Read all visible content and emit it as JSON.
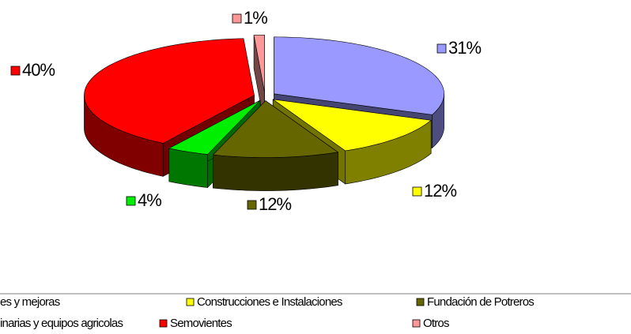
{
  "chart_data": {
    "type": "pie",
    "categories": [
      "es y mejoras",
      "Construcciones e Instalaciones",
      "Fundación de Potreros",
      "inarias y equipos agricolas",
      "Semovientes",
      "Otros"
    ],
    "values": [
      31,
      12,
      12,
      4,
      40,
      1
    ],
    "value_labels": [
      "31%",
      "12%",
      "12%",
      "4%",
      "40%",
      "1%"
    ],
    "colors": [
      "#9999ff",
      "#ffff00",
      "#666600",
      "#00ee00",
      "#ff0000",
      "#ff9999"
    ],
    "legend": "bottom"
  }
}
